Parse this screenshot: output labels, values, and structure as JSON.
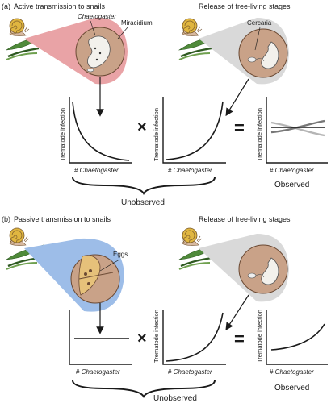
{
  "panel_a": {
    "label": "(a)",
    "left_title": "Active transmission to snails",
    "right_title": "Release of free-living stages",
    "callouts": {
      "chaetogaster": "Chaetogaster",
      "miracidium": "Miracidium",
      "cercaria": "Cercaria"
    },
    "plots": [
      {
        "ylabel": "Trematode infection",
        "xlabel_prefix": "# ",
        "xlabel": "Chaetogaster",
        "shape": "decreasing"
      },
      {
        "ylabel": "Trematode infection",
        "xlabel_prefix": "# ",
        "xlabel": "Chaetogaster",
        "shape": "increasing"
      },
      {
        "ylabel": "Trematode infection",
        "xlabel_prefix": "# ",
        "xlabel": "Chaetogaster",
        "shape": "crossing-flat"
      }
    ],
    "operators": {
      "times": "×",
      "equals": "="
    },
    "unobserved": "Unobserved",
    "observed": "Observed"
  },
  "panel_b": {
    "label": "(b)",
    "left_title": "Passive transmission to snails",
    "right_title": "Release of free-living stages",
    "callouts": {
      "eggs": "Eggs"
    },
    "plots": [
      {
        "ylabel": "Trematode infection",
        "xlabel_prefix": "# ",
        "xlabel": "Chaetogaster",
        "shape": "flat"
      },
      {
        "ylabel": "Trematode infection",
        "xlabel_prefix": "# ",
        "xlabel": "Chaetogaster",
        "shape": "increasing"
      },
      {
        "ylabel": "Trematode infection",
        "xlabel_prefix": "# ",
        "xlabel": "Chaetogaster",
        "shape": "increasing-gentle"
      }
    ],
    "operators": {
      "times": "×",
      "equals": "="
    },
    "unobserved": "Unobserved",
    "observed": "Observed"
  },
  "colors": {
    "active_bubble": "#e9a3a6",
    "passive_bubble": "#9dbde8",
    "release_bubble": "#d9d9d9",
    "circle_fill": "#c9a288",
    "leaf": "#4f8a3a",
    "snail_shell": "#e0b640"
  }
}
